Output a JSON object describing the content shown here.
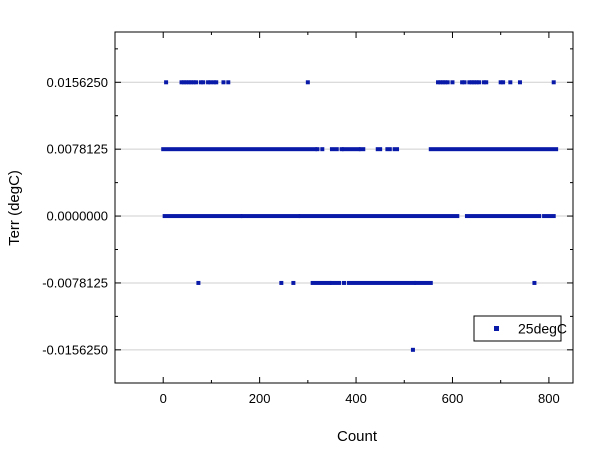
{
  "chart_data": {
    "type": "scatter",
    "title": "",
    "xlabel": "Count",
    "ylabel": "Terr (degC)",
    "xlim": [
      -100,
      850
    ],
    "ylim": [
      -0.0195,
      0.0215
    ],
    "x_ticks": [
      0,
      200,
      400,
      600,
      800
    ],
    "y_ticks": [
      0.015625,
      0.0078125,
      0.0,
      -0.0078125,
      -0.015625
    ],
    "x_tick_labels": [
      "0",
      "200",
      "400",
      "600",
      "800"
    ],
    "y_tick_labels": [
      "0.0156250",
      "0.0078125",
      "0.0000000",
      "-0.0078125",
      "-0.0156250"
    ],
    "grid": "horizontal",
    "legend_position": "bottom-right",
    "marker": "square",
    "series": [
      {
        "name": "25degC",
        "color": "#0a1aa8",
        "levels": [
          {
            "y": 0.015625,
            "x": [
              6,
              38,
              43,
              48,
              53,
              58,
              63,
              68,
              78,
              83,
              93,
              98,
              105,
              110,
              125,
              135,
              300,
              570,
              575,
              580,
              585,
              590,
              600,
              620,
              625,
              635,
              640,
              645,
              650,
              655,
              665,
              670,
              700,
              705,
              720,
              740,
              810
            ]
          },
          {
            "y": 0.0078125,
            "ranges": [
              [
                0,
                315
              ],
              [
                350,
                360
              ],
              [
                375,
                405
              ],
              [
                410,
                415
              ],
              [
                445,
                450
              ],
              [
                465,
                470
              ],
              [
                480,
                485
              ],
              [
                555,
                815
              ]
            ],
            "x": [
              320,
              330,
              370
            ]
          },
          {
            "y": 0.0,
            "ranges": [
              [
                3,
                160
              ],
              [
                165,
                280
              ],
              [
                285,
                610
              ],
              [
                630,
                780
              ],
              [
                790,
                810
              ]
            ],
            "x": []
          },
          {
            "y": -0.0078125,
            "ranges": [
              [
                310,
                345
              ],
              [
                350,
                365
              ],
              [
                385,
                520
              ],
              [
                525,
                555
              ]
            ],
            "x": [
              73,
              245,
              270,
              375,
              770
            ]
          },
          {
            "y": -0.015625,
            "x": [
              518
            ]
          }
        ]
      }
    ]
  }
}
